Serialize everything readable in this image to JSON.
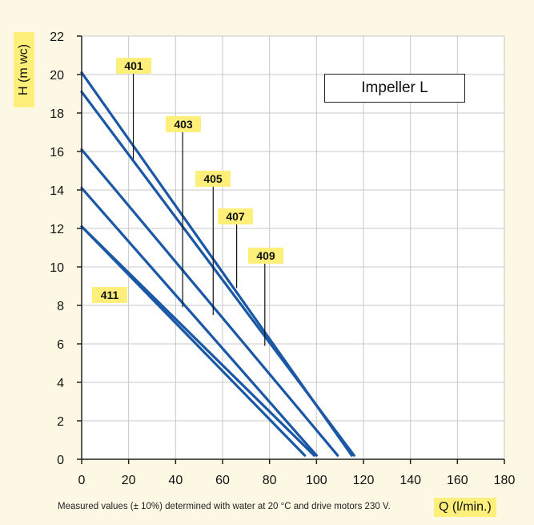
{
  "chart_data": {
    "type": "line",
    "ylabel": "H (m wc)",
    "xlabel": "Q (l/min.)",
    "footnote": "Measured values (± 10%) determined with water at 20 °C and drive motors 230 V.",
    "legend_box": "Impeller L",
    "xlim": [
      0,
      180
    ],
    "ylim": [
      0,
      22
    ],
    "xticks": [
      0,
      20,
      40,
      60,
      80,
      100,
      120,
      140,
      160,
      180
    ],
    "yticks": [
      0,
      2,
      4,
      6,
      8,
      10,
      12,
      14,
      16,
      18,
      20,
      22
    ],
    "grid": true,
    "series": [
      {
        "name": "401",
        "x": [
          0,
          115
        ],
        "y": [
          20.1,
          0.2
        ]
      },
      {
        "name": "403",
        "x": [
          0,
          116
        ],
        "y": [
          19.1,
          0.2
        ]
      },
      {
        "name": "405",
        "x": [
          0,
          109
        ],
        "y": [
          16.1,
          0.2
        ]
      },
      {
        "name": "407",
        "x": [
          0,
          100
        ],
        "y": [
          14.1,
          0.2
        ]
      },
      {
        "name": "409",
        "x": [
          0,
          95
        ],
        "y": [
          12.1,
          0.2
        ]
      },
      {
        "name": "411",
        "x": [
          0,
          99
        ],
        "y": [
          12.1,
          0.2
        ]
      }
    ],
    "line_color": "#1a58a6",
    "label_bg_color": "#fdef7a",
    "annotations": [
      {
        "text": "401",
        "at": [
          22,
          15.6
        ]
      },
      {
        "text": "403",
        "at": [
          43,
          7.9
        ]
      },
      {
        "text": "405",
        "at": [
          56,
          7.5
        ]
      },
      {
        "text": "407",
        "at": [
          66,
          8.9
        ]
      },
      {
        "text": "409",
        "at": [
          78,
          5.9
        ]
      },
      {
        "text": "411",
        "at": [
          12,
          8.3
        ]
      }
    ]
  }
}
